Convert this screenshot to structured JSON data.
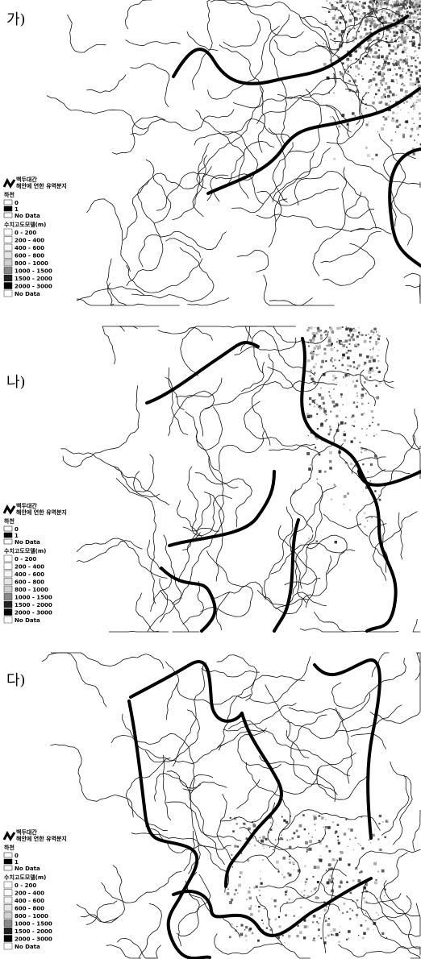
{
  "panels": [
    {
      "label": "가)",
      "legend": {
        "ridge": "백두대간",
        "basin": "해안에 연한 유역분지",
        "river_title": "하천",
        "river_items": [
          "0",
          "1",
          "No Data"
        ],
        "dem_title": "수치고도모델(m)",
        "dem_items": [
          "0 - 200",
          "200 - 400",
          "400 - 600",
          "600 - 800",
          "800 - 1000",
          "1000 - 1500",
          "1500 - 2000",
          "2000 - 3000",
          "No Data"
        ]
      }
    },
    {
      "label": "나)",
      "legend": {
        "ridge": "백두대간",
        "basin": "해안에 연한 유역분지",
        "river_title": "하천",
        "river_items": [
          "0",
          "1",
          "No Data"
        ],
        "dem_title": "수치고도모델(m)",
        "dem_items": [
          "0 - 200",
          "200 - 400",
          "400 - 600",
          "600 - 800",
          "800 - 1000",
          "1000 - 1500",
          "1500 - 2000",
          "2000 - 3000",
          "No Data"
        ]
      }
    },
    {
      "label": "다)",
      "legend": {
        "ridge": "백두대간",
        "basin": "해안에 연한 유역분지",
        "river_title": "하천",
        "river_items": [
          "0",
          "1",
          "No Data"
        ],
        "dem_title": "수치고도모델(m)",
        "dem_items": [
          "0 - 200",
          "200 - 400",
          "400 - 600",
          "600 - 800",
          "800 - 1000",
          "1000 - 1500",
          "1500 - 2000",
          "2000 - 3000",
          "No Data"
        ]
      }
    }
  ]
}
